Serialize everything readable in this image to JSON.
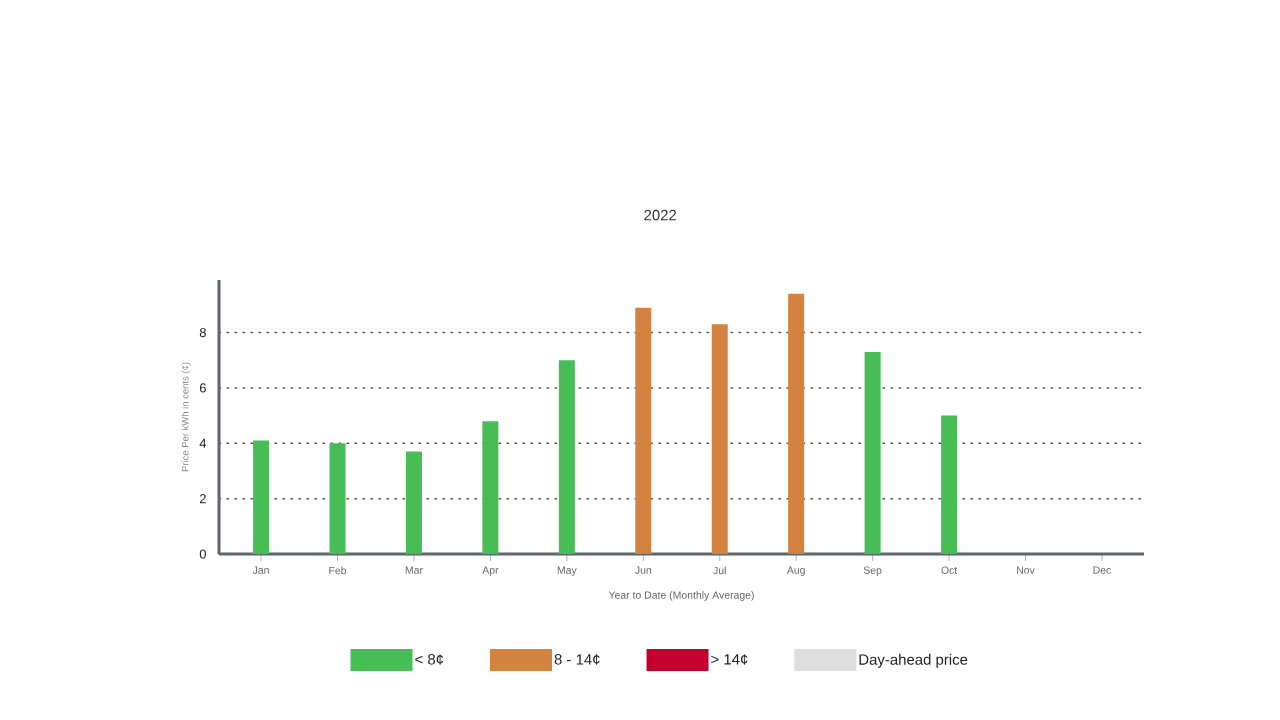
{
  "chart_data": {
    "type": "bar",
    "title": "2022",
    "xlabel": "Year to Date (Monthly Average)",
    "ylabel": "Price Per kWh in cents (¢)",
    "categories": [
      "Jan",
      "Feb",
      "Mar",
      "Apr",
      "May",
      "Jun",
      "Jul",
      "Aug",
      "Sep",
      "Oct",
      "Nov",
      "Dec"
    ],
    "series": [
      {
        "name": "< 8¢",
        "color": "#46be55",
        "values": [
          4.1,
          4.0,
          3.7,
          4.8,
          7.0,
          null,
          null,
          null,
          7.3,
          5.0,
          null,
          null
        ]
      },
      {
        "name": "8 - 14¢",
        "color": "#d3833f",
        "values": [
          null,
          null,
          null,
          null,
          null,
          8.9,
          8.3,
          9.4,
          null,
          null,
          null,
          null
        ]
      },
      {
        "name": "> 14¢",
        "color": "#c4002f",
        "values": [
          null,
          null,
          null,
          null,
          null,
          null,
          null,
          null,
          null,
          null,
          null,
          null
        ]
      },
      {
        "name": "Day-ahead price",
        "color": "#dedede",
        "values": [
          null,
          null,
          null,
          null,
          null,
          null,
          null,
          null,
          null,
          null,
          null,
          null
        ]
      }
    ],
    "ylim": [
      0,
      9.9
    ],
    "yticks": [
      0,
      2,
      4,
      6,
      8
    ],
    "grid": "y",
    "legend": "bottom"
  }
}
